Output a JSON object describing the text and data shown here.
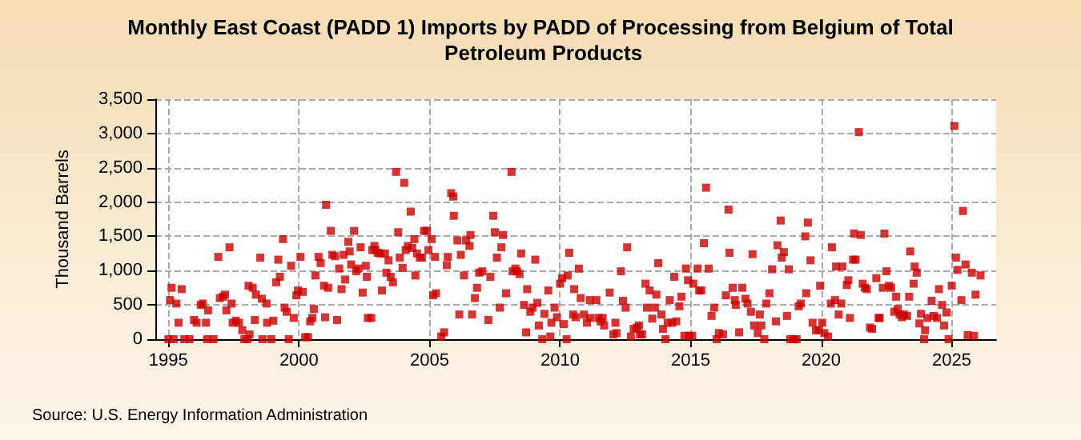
{
  "chart_data": {
    "type": "scatter",
    "title": "Monthly East Coast (PADD 1) Imports by PADD of Processing from Belgium of Total Petroleum Products",
    "ylabel": "Thousand Barrels",
    "annotations": [
      "Source: U.S. Energy Information Administration"
    ],
    "xlim": [
      1994.5,
      2026.7
    ],
    "xticks": [
      1995,
      2000,
      2005,
      2010,
      2015,
      2020,
      2025
    ],
    "ylim": [
      0,
      3500
    ],
    "yticks": [
      {
        "value": 0,
        "label": "0"
      },
      {
        "value": 500,
        "label": "500"
      },
      {
        "value": 1000,
        "label": "1,000"
      },
      {
        "value": 1500,
        "label": "1,500"
      },
      {
        "value": 2000,
        "label": "2,000"
      },
      {
        "value": 2500,
        "label": "2,500"
      },
      {
        "value": 3000,
        "label": "3,000"
      },
      {
        "value": 3500,
        "label": "3,500"
      }
    ],
    "grid": true,
    "marker": "square",
    "series": [
      {
        "color": "#cc0000",
        "x": [
          1995.0,
          1995.06,
          1995.12,
          1995.2,
          1995.3,
          1995.39,
          1995.51,
          1995.61,
          1995.81,
          1995.98,
          1996.08,
          1996.24,
          1996.32,
          1996.44,
          1996.52,
          1996.48,
          1996.73,
          1996.91,
          1996.97,
          1997.09,
          1997.17,
          1997.22,
          1997.34,
          1997.42,
          1997.46,
          1997.58,
          1997.7,
          1997.83,
          1997.91,
          1998.03,
          1998.07,
          1998.11,
          1998.23,
          1998.31,
          1998.35,
          1998.52,
          1998.58,
          1998.6,
          1998.76,
          1998.78,
          1998.94,
          1999.02,
          1999.13,
          1999.21,
          1999.27,
          1999.39,
          1999.45,
          1999.53,
          1999.61,
          1999.7,
          1999.8,
          1999.9,
          1999.96,
          2000.06,
          2000.14,
          2000.24,
          2000.35,
          2000.43,
          2000.51,
          2000.57,
          2000.63,
          2000.75,
          2000.83,
          2000.96,
          2001.0,
          2001.04,
          2001.12,
          2001.22,
          2001.28,
          2001.38,
          2001.46,
          2001.54,
          2001.63,
          2001.71,
          2001.77,
          2001.89,
          2001.94,
          2002.0,
          2002.11,
          2002.19,
          2002.27,
          2002.36,
          2002.44,
          2002.56,
          2002.6,
          2002.64,
          2002.77,
          2002.81,
          2002.89,
          2002.93,
          2003.02,
          2003.1,
          2003.18,
          2003.29,
          2003.35,
          2003.43,
          2003.51,
          2003.6,
          2003.72,
          2003.8,
          2003.86,
          2003.97,
          2004.03,
          2004.09,
          2004.17,
          2004.28,
          2004.34,
          2004.42,
          2004.46,
          2004.52,
          2004.63,
          2004.71,
          2004.79,
          2004.9,
          2004.96,
          2005.08,
          2005.14,
          2005.21,
          2005.25,
          2005.45,
          2005.56,
          2005.66,
          2005.7,
          2005.83,
          2005.91,
          2005.93,
          2006.07,
          2006.14,
          2006.2,
          2006.32,
          2006.4,
          2006.53,
          2006.57,
          2006.63,
          2006.74,
          2006.82,
          2006.9,
          2007.02,
          2007.25,
          2007.33,
          2007.44,
          2007.5,
          2007.58,
          2007.69,
          2007.75,
          2007.81,
          2007.93,
          2008.14,
          2008.18,
          2008.29,
          2008.35,
          2008.45,
          2008.51,
          2008.62,
          2008.7,
          2008.74,
          2008.86,
          2008.95,
          2009.05,
          2009.13,
          2009.19,
          2009.32,
          2009.4,
          2009.55,
          2009.63,
          2009.67,
          2009.79,
          2009.88,
          2010.0,
          2010.08,
          2010.14,
          2010.25,
          2010.29,
          2010.35,
          2010.5,
          2010.54,
          2010.6,
          2010.72,
          2010.79,
          2010.91,
          2011.03,
          2011.14,
          2011.16,
          2011.39,
          2011.47,
          2011.55,
          2011.63,
          2011.69,
          2011.9,
          2012.04,
          2012.12,
          2012.16,
          2012.33,
          2012.41,
          2012.51,
          2012.57,
          2012.71,
          2012.82,
          2012.94,
          2013.02,
          2013.06,
          2013.14,
          2013.27,
          2013.33,
          2013.43,
          2013.53,
          2013.63,
          2013.69,
          2013.76,
          2013.88,
          2013.94,
          2014.04,
          2014.12,
          2014.2,
          2014.29,
          2014.37,
          2014.45,
          2014.57,
          2014.65,
          2014.76,
          2014.82,
          2014.9,
          2014.94,
          2015.06,
          2015.1,
          2015.27,
          2015.33,
          2015.41,
          2015.51,
          2015.59,
          2015.69,
          2015.8,
          2015.9,
          2016.0,
          2016.08,
          2016.24,
          2016.35,
          2016.45,
          2016.49,
          2016.61,
          2016.69,
          2016.73,
          2016.86,
          2016.98,
          2017.1,
          2017.18,
          2017.31,
          2017.37,
          2017.43,
          2017.57,
          2017.65,
          2017.71,
          2017.82,
          2017.9,
          2018.02,
          2018.12,
          2018.27,
          2018.33,
          2018.45,
          2018.49,
          2018.57,
          2018.69,
          2018.76,
          2018.82,
          2018.94,
          2019.06,
          2019.14,
          2019.22,
          2019.39,
          2019.43,
          2019.49,
          2019.59,
          2019.67,
          2019.8,
          2019.92,
          2019.96,
          2020.04,
          2020.12,
          2020.26,
          2020.37,
          2020.41,
          2020.53,
          2020.57,
          2020.67,
          2020.77,
          2020.81,
          2020.98,
          2021.04,
          2021.1,
          2021.22,
          2021.26,
          2021.32,
          2021.44,
          2021.52,
          2021.59,
          2021.67,
          2021.75,
          2021.87,
          2021.95,
          2022.11,
          2022.2,
          2022.24,
          2022.36,
          2022.42,
          2022.5,
          2022.6,
          2022.68,
          2022.8,
          2022.87,
          2022.93,
          2023.0,
          2023.09,
          2023.17,
          2023.29,
          2023.37,
          2023.41,
          2023.54,
          2023.58,
          2023.66,
          2023.76,
          2023.82,
          2023.94,
          2023.98,
          2024.07,
          2024.23,
          2024.31,
          2024.43,
          2024.51,
          2024.63,
          2024.71,
          2024.8,
          2024.88,
          2025.0,
          2025.1,
          2025.16,
          2025.22,
          2025.37,
          2025.43,
          2025.53,
          2025.61,
          2025.77,
          2025.85,
          2025.91,
          2026.1
        ],
        "values": [
          0,
          570,
          750,
          0,
          520,
          240,
          730,
          0,
          0,
          280,
          240,
          500,
          520,
          240,
          420,
          0,
          0,
          1200,
          600,
          620,
          650,
          420,
          1340,
          520,
          240,
          270,
          240,
          130,
          0,
          0,
          780,
          70,
          750,
          280,
          650,
          1190,
          590,
          0,
          520,
          240,
          0,
          270,
          830,
          1160,
          910,
          1460,
          460,
          400,
          0,
          1070,
          310,
          640,
          710,
          1200,
          690,
          30,
          30,
          260,
          310,
          440,
          930,
          1200,
          1110,
          780,
          320,
          1960,
          750,
          1580,
          1230,
          1210,
          280,
          1030,
          730,
          1230,
          870,
          1420,
          1280,
          1090,
          1580,
          990,
          1030,
          1340,
          680,
          1070,
          910,
          310,
          310,
          1300,
          1360,
          1300,
          1260,
          1250,
          710,
          1250,
          970,
          1150,
          910,
          830,
          2440,
          1560,
          1190,
          1040,
          2280,
          1300,
          1360,
          1860,
          1330,
          1460,
          930,
          1250,
          1190,
          1190,
          1580,
          1580,
          1300,
          1460,
          640,
          1200,
          670,
          40,
          100,
          1080,
          1200,
          2130,
          2080,
          1800,
          1440,
          360,
          1230,
          930,
          1440,
          1360,
          1520,
          360,
          600,
          750,
          970,
          990,
          280,
          910,
          1800,
          1560,
          1190,
          460,
          1340,
          1520,
          670,
          2440,
          990,
          1030,
          990,
          950,
          1250,
          500,
          100,
          730,
          400,
          460,
          1160,
          530,
          200,
          0,
          370,
          710,
          40,
          240,
          460,
          320,
          810,
          890,
          220,
          0,
          930,
          1260,
          360,
          730,
          320,
          1030,
          600,
          360,
          240,
          570,
          310,
          570,
          310,
          260,
          310,
          200,
          680,
          70,
          240,
          90,
          990,
          560,
          460,
          1340,
          40,
          150,
          170,
          200,
          70,
          70,
          810,
          460,
          710,
          300,
          460,
          650,
          1110,
          360,
          150,
          0,
          240,
          570,
          240,
          910,
          260,
          480,
          620,
          50,
          1030,
          860,
          50,
          50,
          810,
          1030,
          710,
          710,
          1400,
          2210,
          1030,
          340,
          460,
          0,
          90,
          70,
          640,
          1890,
          1260,
          750,
          570,
          500,
          100,
          750,
          590,
          520,
          400,
          1240,
          200,
          90,
          360,
          200,
          0,
          520,
          670,
          1020,
          260,
          1370,
          1730,
          1190,
          1270,
          340,
          1020,
          0,
          0,
          0,
          480,
          520,
          1500,
          670,
          1700,
          1150,
          240,
          130,
          130,
          780,
          240,
          90,
          40,
          520,
          1340,
          570,
          1060,
          360,
          520,
          1060,
          790,
          860,
          310,
          1160,
          1540,
          1160,
          3020,
          1520,
          810,
          750,
          730,
          170,
          150,
          890,
          310,
          310,
          750,
          1540,
          990,
          780,
          750,
          400,
          620,
          440,
          360,
          320,
          360,
          340,
          620,
          1280,
          810,
          1060,
          970,
          230,
          370,
          0,
          130,
          310,
          560,
          340,
          310,
          730,
          500,
          200,
          390,
          0,
          780,
          3110,
          1190,
          1010,
          570,
          1870,
          1090,
          60,
          970,
          50,
          650,
          930
        ]
      }
    ]
  }
}
